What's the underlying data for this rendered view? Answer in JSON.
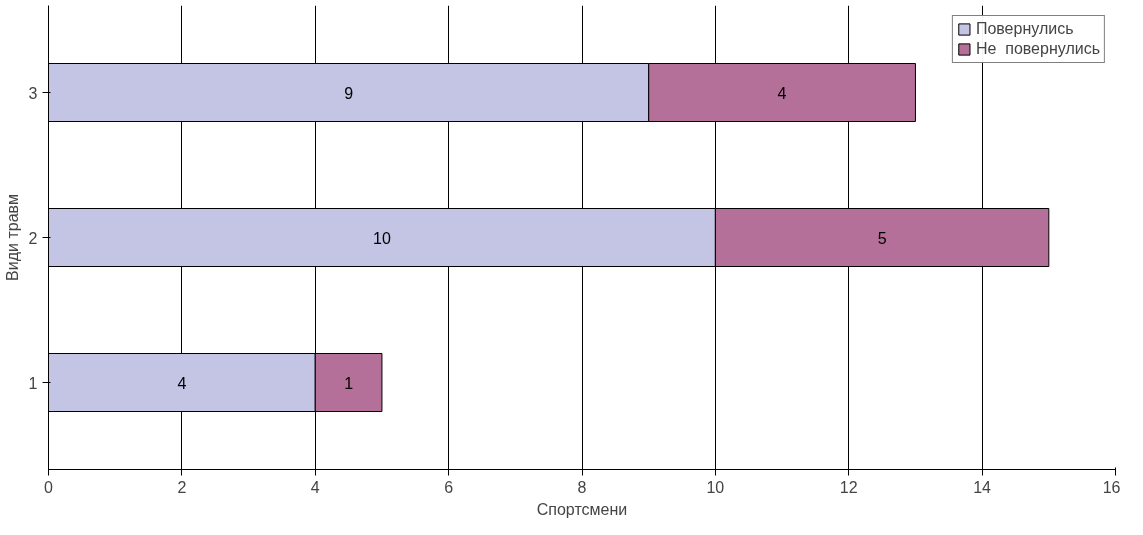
{
  "chart_data": {
    "type": "bar",
    "orientation": "horizontal",
    "stacked": true,
    "xlabel": "Спортсмени",
    "ylabel": "Види травм",
    "categories": [
      "3",
      "2",
      "1"
    ],
    "series": [
      {
        "name": "Повернулись",
        "color": "#c4c4e4",
        "values": [
          9,
          10,
          4
        ]
      },
      {
        "name": "Не  повернулись",
        "color": "#b47098",
        "values": [
          4,
          5,
          1
        ]
      }
    ],
    "xlim": [
      0,
      16
    ],
    "xticks": [
      0,
      2,
      4,
      6,
      8,
      10,
      12,
      14,
      16
    ],
    "grid": "x",
    "legend": "top right",
    "data_labels": true
  }
}
